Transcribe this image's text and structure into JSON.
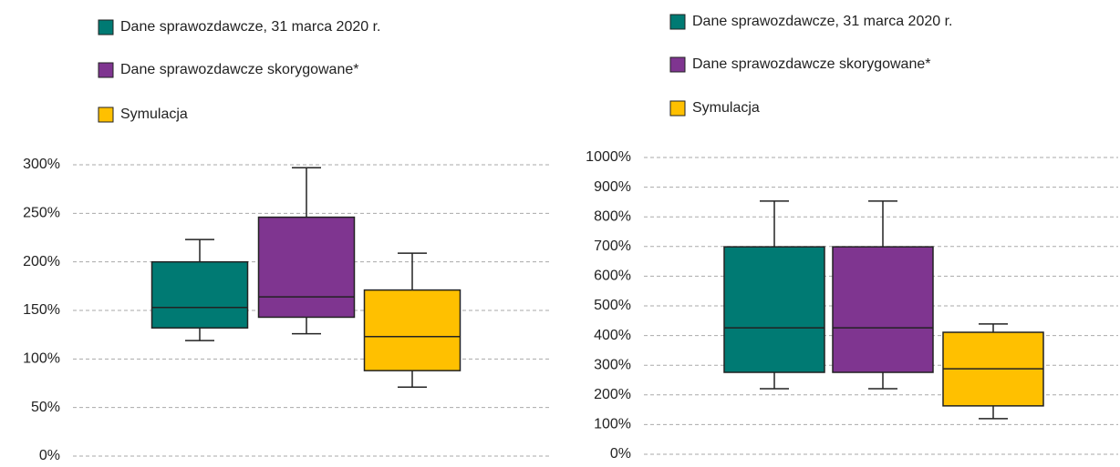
{
  "chart_data": [
    {
      "type": "box",
      "series": [
        {
          "name": "Dane sprawozdawcze, 31 marca 2020 r.",
          "color": "#007a73",
          "min": 119,
          "q1": 132,
          "median": 153,
          "q3": 200,
          "max": 223
        },
        {
          "name": "Dane sprawozdawcze skorygowane*",
          "color": "#7f3590",
          "min": 126,
          "q1": 143,
          "median": 164,
          "q3": 246,
          "max": 297
        },
        {
          "name": "Symulacja",
          "color": "#ffc000",
          "min": 71,
          "q1": 88,
          "median": 123,
          "q3": 171,
          "max": 209
        }
      ],
      "ylim": [
        0,
        300
      ],
      "yticks": [
        {
          "value": 0,
          "label": "0%"
        },
        {
          "value": 50,
          "label": "50%"
        },
        {
          "value": 100,
          "label": "100%"
        },
        {
          "value": 150,
          "label": "150%"
        },
        {
          "value": 200,
          "label": "200%"
        },
        {
          "value": 250,
          "label": "250%"
        },
        {
          "value": 300,
          "label": "300%"
        }
      ],
      "grid": true
    },
    {
      "type": "box",
      "series": [
        {
          "name": "Dane sprawozdawcze, 31 marca 2020 r.",
          "color": "#007a73",
          "min": 221,
          "q1": 276,
          "median": 426,
          "q3": 699,
          "max": 853
        },
        {
          "name": "Dane sprawozdawcze skorygowane*",
          "color": "#7f3590",
          "min": 221,
          "q1": 276,
          "median": 426,
          "q3": 699,
          "max": 853
        },
        {
          "name": "Symulacja",
          "color": "#ffc000",
          "min": 120,
          "q1": 163,
          "median": 288,
          "q3": 411,
          "max": 439
        }
      ],
      "ylim": [
        0,
        1000
      ],
      "yticks": [
        {
          "value": 0,
          "label": "0%"
        },
        {
          "value": 100,
          "label": "100%"
        },
        {
          "value": 200,
          "label": "200%"
        },
        {
          "value": 300,
          "label": "300%"
        },
        {
          "value": 400,
          "label": "400%"
        },
        {
          "value": 500,
          "label": "500%"
        },
        {
          "value": 600,
          "label": "600%"
        },
        {
          "value": 700,
          "label": "700%"
        },
        {
          "value": 800,
          "label": "800%"
        },
        {
          "value": 900,
          "label": "900%"
        },
        {
          "value": 1000,
          "label": "1000%"
        }
      ],
      "grid": true
    }
  ]
}
